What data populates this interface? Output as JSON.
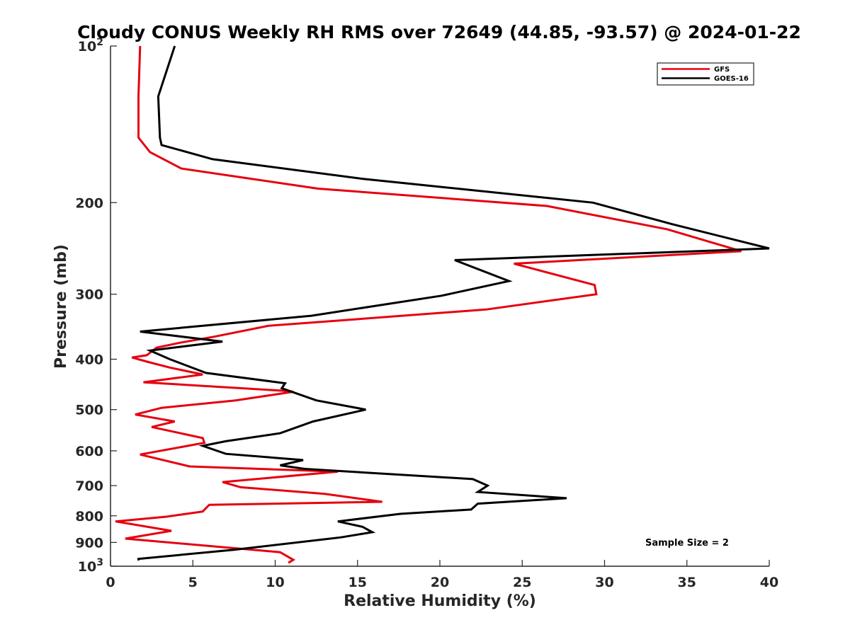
{
  "chart_data": {
    "type": "line",
    "title": "Cloudy CONUS Weekly RH RMS over 72649 (44.85, -93.57) @ 2024-01-22",
    "xlabel": "Relative Humidity (%)",
    "ylabel": "Pressure (mb)",
    "xlim": [
      0,
      40
    ],
    "ylim": [
      100,
      1000
    ],
    "y_scale": "log",
    "y_reversed": true,
    "grid": false,
    "legend_position": "top-right",
    "x_ticks": [
      "0",
      "5",
      "10",
      "15",
      "20",
      "25",
      "30",
      "35",
      "40"
    ],
    "y_ticks": [
      {
        "value": 100,
        "base": "10",
        "exp": "2"
      },
      {
        "value": 200,
        "label": "200"
      },
      {
        "value": 300,
        "label": "300"
      },
      {
        "value": 400,
        "label": "400"
      },
      {
        "value": 500,
        "label": "500"
      },
      {
        "value": 600,
        "label": "600"
      },
      {
        "value": 700,
        "label": "700"
      },
      {
        "value": 800,
        "label": "800"
      },
      {
        "value": 900,
        "label": "900"
      },
      {
        "value": 1000,
        "base": "10",
        "exp": "3"
      }
    ],
    "annotation": "Sample Size = 2",
    "series": [
      {
        "name": "GFS",
        "color": "#e6000f",
        "points": [
          [
            1.8,
            100
          ],
          [
            1.7,
            125
          ],
          [
            1.7,
            150
          ],
          [
            2.4,
            160
          ],
          [
            4.3,
            172
          ],
          [
            12.6,
            188
          ],
          [
            26.5,
            203
          ],
          [
            33.8,
            225
          ],
          [
            38.3,
            248
          ],
          [
            24.5,
            262
          ],
          [
            29.4,
            288
          ],
          [
            29.5,
            300
          ],
          [
            22.8,
            321
          ],
          [
            9.6,
            345
          ],
          [
            6.3,
            362
          ],
          [
            4.2,
            372
          ],
          [
            2.8,
            380
          ],
          [
            2.2,
            393
          ],
          [
            1.3,
            397
          ],
          [
            2.3,
            405
          ],
          [
            3.6,
            415
          ],
          [
            5.6,
            428
          ],
          [
            2.0,
            443
          ],
          [
            10.5,
            460
          ],
          [
            11.1,
            462
          ],
          [
            7.6,
            480
          ],
          [
            3.1,
            496
          ],
          [
            1.5,
            511
          ],
          [
            3.9,
            527
          ],
          [
            2.5,
            540
          ],
          [
            5.6,
            567
          ],
          [
            5.7,
            579
          ],
          [
            1.8,
            610
          ],
          [
            4.8,
            643
          ],
          [
            13.8,
            658
          ],
          [
            6.8,
            689
          ],
          [
            7.9,
            705
          ],
          [
            13.0,
            726
          ],
          [
            16.5,
            752
          ],
          [
            6.0,
            762
          ],
          [
            5.8,
            773
          ],
          [
            5.6,
            785
          ],
          [
            3.4,
            803
          ],
          [
            0.3,
            820
          ],
          [
            3.7,
            855
          ],
          [
            0.9,
            885
          ],
          [
            10.3,
            940
          ],
          [
            11.1,
            972
          ],
          [
            10.8,
            985
          ]
        ]
      },
      {
        "name": "GOES-16",
        "color": "#000000",
        "points": [
          [
            3.9,
            100
          ],
          [
            2.9,
            125
          ],
          [
            3.0,
            150
          ],
          [
            3.1,
            155
          ],
          [
            6.2,
            165
          ],
          [
            15.3,
            180
          ],
          [
            29.3,
            200
          ],
          [
            34.1,
            220
          ],
          [
            40.0,
            245
          ],
          [
            20.9,
            258
          ],
          [
            24.2,
            283
          ],
          [
            20.1,
            302
          ],
          [
            12.2,
            330
          ],
          [
            1.8,
            354
          ],
          [
            6.8,
            370
          ],
          [
            2.4,
            385
          ],
          [
            3.6,
            400
          ],
          [
            5.8,
            425
          ],
          [
            10.6,
            445
          ],
          [
            10.4,
            455
          ],
          [
            12.5,
            480
          ],
          [
            15.5,
            500
          ],
          [
            12.3,
            527
          ],
          [
            10.3,
            555
          ],
          [
            7.0,
            575
          ],
          [
            5.6,
            587
          ],
          [
            7.0,
            608
          ],
          [
            11.7,
            625
          ],
          [
            10.3,
            640
          ],
          [
            11.8,
            650
          ],
          [
            22.0,
            680
          ],
          [
            22.9,
            700
          ],
          [
            22.3,
            720
          ],
          [
            27.7,
            740
          ],
          [
            22.3,
            758
          ],
          [
            21.9,
            778
          ],
          [
            17.6,
            793
          ],
          [
            13.8,
            820
          ],
          [
            15.3,
            840
          ],
          [
            15.9,
            860
          ],
          [
            14.0,
            880
          ],
          [
            7.5,
            930
          ],
          [
            1.7,
            968
          ],
          [
            1.7,
            975
          ]
        ]
      }
    ]
  }
}
